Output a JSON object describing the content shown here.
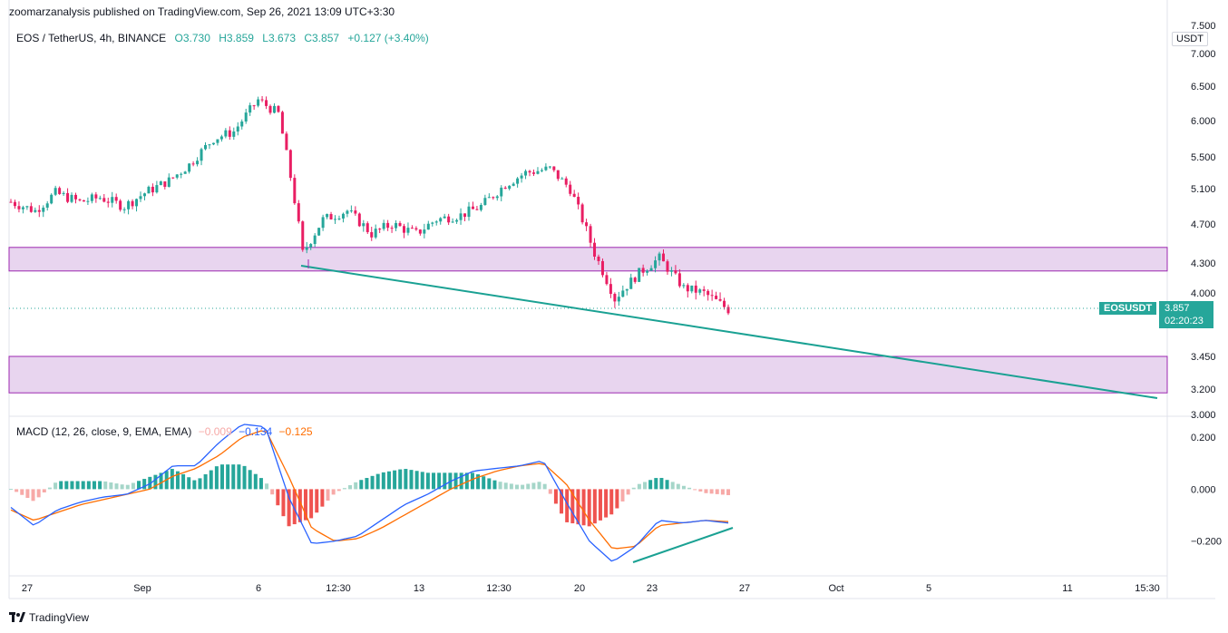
{
  "header": {
    "publisher": "zoomarzanalysis published on TradingView.com, Sep 26, 2021 13:09 UTC+3:30"
  },
  "legend": {
    "symbol": "EOS / TetherUS, 4h, BINANCE",
    "open": "O3.730",
    "high": "H3.859",
    "low": "L3.673",
    "close": "C3.857",
    "change": "+0.127 (+3.40%)"
  },
  "macd_legend": {
    "label": "MACD (12, 26, close, 9, EMA, EMA)",
    "hist": "−0.009",
    "macd": "−0.134",
    "signal": "−0.125"
  },
  "price_axis": {
    "unit": "USDT",
    "ticks": [
      "7.500",
      "7.000",
      "6.500",
      "6.000",
      "5.500",
      "5.100",
      "4.700",
      "4.300",
      "4.000",
      "3.450",
      "3.200",
      "3.000"
    ]
  },
  "macd_axis": {
    "ticks": [
      "0.200",
      "0.000",
      "−0.200"
    ]
  },
  "time_axis": {
    "ticks": [
      "27",
      "Sep",
      "6",
      "12:30",
      "13",
      "12:30",
      "20",
      "23",
      "27",
      "Oct",
      "5",
      "11",
      "15:30"
    ]
  },
  "last_price": {
    "symbol": "EOSUSDT",
    "value": "3.857",
    "countdown": "02:20:23"
  },
  "footer": {
    "brand": "TradingView"
  },
  "colors": {
    "up": "#26a69a",
    "down": "#ef5350",
    "candle_down": "#e91e63",
    "zone_fill": "#e8d5ef",
    "zone_stroke": "#9c27b0",
    "trendline": "#1aa193",
    "macd_line": "#2962ff",
    "signal_line": "#ff6d00"
  },
  "chart_data": [
    {
      "type": "candlestick",
      "symbol": "EOS / TetherUS",
      "interval": "4h",
      "ylim": [
        3.0,
        7.5
      ],
      "scale": "log",
      "close_path": [
        [
          "2021-08-26",
          4.95
        ],
        [
          "2021-08-27",
          4.85
        ],
        [
          "2021-08-28",
          5.05
        ],
        [
          "2021-08-29",
          4.95
        ],
        [
          "2021-08-30",
          5.0
        ],
        [
          "2021-08-31",
          4.9
        ],
        [
          "2021-09-01",
          5.05
        ],
        [
          "2021-09-02",
          5.2
        ],
        [
          "2021-09-03",
          5.4
        ],
        [
          "2021-09-04",
          5.75
        ],
        [
          "2021-09-05",
          5.85
        ],
        [
          "2021-09-06",
          6.3
        ],
        [
          "2021-09-07",
          6.1
        ],
        [
          "2021-09-07 12:00",
          4.4
        ],
        [
          "2021-09-08",
          4.75
        ],
        [
          "2021-09-09",
          4.85
        ],
        [
          "2021-09-10",
          4.6
        ],
        [
          "2021-09-11",
          4.7
        ],
        [
          "2021-09-12",
          4.6
        ],
        [
          "2021-09-13",
          4.75
        ],
        [
          "2021-09-14",
          4.8
        ],
        [
          "2021-09-15",
          4.9
        ],
        [
          "2021-09-16",
          5.15
        ],
        [
          "2021-09-17",
          5.3
        ],
        [
          "2021-09-18",
          5.35
        ],
        [
          "2021-09-19",
          5.1
        ],
        [
          "2021-09-20",
          4.4
        ],
        [
          "2021-09-21",
          3.95
        ],
        [
          "2021-09-22",
          4.2
        ],
        [
          "2021-09-23",
          4.35
        ],
        [
          "2021-09-24",
          4.05
        ],
        [
          "2021-09-25",
          4.0
        ],
        [
          "2021-09-26",
          3.857
        ]
      ],
      "zones": [
        {
          "from": 4.22,
          "to": 4.46
        },
        {
          "from": 3.17,
          "to": 3.45
        }
      ],
      "trendline": {
        "from": [
          "2021-09-07",
          4.22
        ],
        "to": [
          "2021-10-15",
          3.13
        ]
      }
    },
    {
      "type": "line",
      "title": "MACD (12, 26, close, 9, EMA, EMA)",
      "ylim": [
        -0.33,
        0.27
      ],
      "series": [
        {
          "name": "MACD",
          "values": [
            -0.07,
            -0.14,
            -0.08,
            -0.05,
            -0.03,
            -0.02,
            0.02,
            0.09,
            0.09,
            0.18,
            0.25,
            0.24,
            -0.03,
            -0.21,
            -0.2,
            -0.18,
            -0.12,
            -0.06,
            -0.02,
            0.03,
            0.07,
            0.08,
            0.09,
            0.11,
            -0.05,
            -0.2,
            -0.28,
            -0.22,
            -0.12,
            -0.13,
            -0.12,
            -0.13
          ]
        },
        {
          "name": "Signal",
          "values": [
            -0.08,
            -0.12,
            -0.09,
            -0.06,
            -0.04,
            -0.02,
            0.0,
            0.05,
            0.08,
            0.13,
            0.2,
            0.23,
            0.05,
            -0.15,
            -0.2,
            -0.19,
            -0.15,
            -0.1,
            -0.05,
            0.0,
            0.04,
            0.07,
            0.09,
            0.1,
            0.02,
            -0.12,
            -0.23,
            -0.22,
            -0.14,
            -0.13,
            -0.12,
            -0.125
          ]
        }
      ],
      "histogram_sign_path": [
        -1,
        -1,
        1,
        1,
        1,
        1,
        1,
        1,
        1,
        1,
        1,
        1,
        -1,
        -1,
        -1,
        1,
        1,
        1,
        1,
        1,
        1,
        1,
        1,
        1,
        -1,
        -1,
        -1,
        1,
        1,
        1,
        -1,
        -1
      ],
      "divergence_line": {
        "from": [
          -0.28
        ],
        "to": [
          -0.14
        ]
      }
    }
  ]
}
